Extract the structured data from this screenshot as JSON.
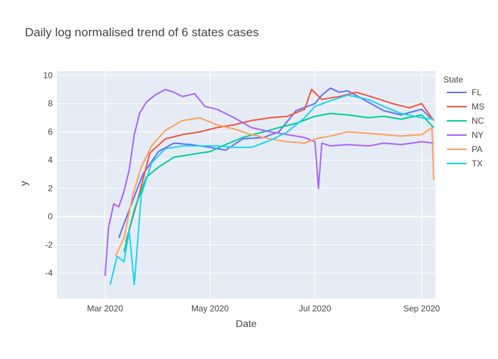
{
  "chart_data": {
    "type": "line",
    "title": "Daily log normalised trend of 6 states cases",
    "xlabel": "Date",
    "ylabel": "y",
    "legend_title": "State",
    "legend_position": "right",
    "grid": true,
    "x_tick_labels": [
      "Mar 2020",
      "May 2020",
      "Jul 2020",
      "Sep 2020"
    ],
    "x_tick_dates": [
      "2020-03-01",
      "2020-05-01",
      "2020-07-01",
      "2020-09-01"
    ],
    "xlim": [
      "2020-02-02",
      "2020-09-09"
    ],
    "y_ticks": [
      -4,
      -2,
      0,
      2,
      4,
      6,
      8,
      10
    ],
    "ylim": [
      -5.8,
      10.3
    ],
    "series": [
      {
        "name": "FL",
        "color": "#636efa",
        "x": [
          "2020-03-09",
          "2020-03-16",
          "2020-03-23",
          "2020-04-01",
          "2020-04-10",
          "2020-04-20",
          "2020-05-01",
          "2020-05-10",
          "2020-05-20",
          "2020-06-01",
          "2020-06-10",
          "2020-06-20",
          "2020-07-01",
          "2020-07-05",
          "2020-07-10",
          "2020-07-15",
          "2020-07-20",
          "2020-08-01",
          "2020-08-10",
          "2020-08-20",
          "2020-09-01",
          "2020-09-06"
        ],
        "y": [
          -1.5,
          0.8,
          3.0,
          4.6,
          5.2,
          5.1,
          4.9,
          4.7,
          5.5,
          5.6,
          6.0,
          7.5,
          8.0,
          8.6,
          9.1,
          8.8,
          8.9,
          8.1,
          7.5,
          7.2,
          7.6,
          7.0
        ]
      },
      {
        "name": "MS",
        "color": "#ef553b",
        "x": [
          "2020-03-13",
          "2020-03-20",
          "2020-03-27",
          "2020-04-05",
          "2020-04-15",
          "2020-04-25",
          "2020-05-05",
          "2020-05-15",
          "2020-05-25",
          "2020-06-05",
          "2020-06-15",
          "2020-06-25",
          "2020-06-29",
          "2020-07-05",
          "2020-07-15",
          "2020-07-25",
          "2020-08-05",
          "2020-08-15",
          "2020-08-25",
          "2020-09-01",
          "2020-09-08"
        ],
        "y": [
          -1.8,
          1.2,
          4.5,
          5.5,
          5.8,
          6.0,
          6.3,
          6.5,
          6.8,
          7.0,
          7.1,
          7.6,
          9.0,
          8.3,
          8.5,
          8.8,
          8.4,
          8.0,
          7.7,
          8.0,
          6.8
        ]
      },
      {
        "name": "NC",
        "color": "#00cc96",
        "x": [
          "2020-03-12",
          "2020-03-18",
          "2020-03-25",
          "2020-04-01",
          "2020-04-10",
          "2020-04-20",
          "2020-05-01",
          "2020-05-10",
          "2020-05-20",
          "2020-06-01",
          "2020-06-10",
          "2020-06-20",
          "2020-07-01",
          "2020-07-10",
          "2020-07-20",
          "2020-08-01",
          "2020-08-10",
          "2020-08-20",
          "2020-09-01",
          "2020-09-08"
        ],
        "y": [
          -2.5,
          0.5,
          2.8,
          3.5,
          4.2,
          4.4,
          4.6,
          5.1,
          5.6,
          6.0,
          6.3,
          6.6,
          7.1,
          7.3,
          7.2,
          7.0,
          7.1,
          6.9,
          7.2,
          6.3
        ]
      },
      {
        "name": "NY",
        "color": "#ab63fa",
        "x": [
          "2020-03-01",
          "2020-03-03",
          "2020-03-06",
          "2020-03-09",
          "2020-03-12",
          "2020-03-15",
          "2020-03-18",
          "2020-03-21",
          "2020-03-25",
          "2020-03-30",
          "2020-04-05",
          "2020-04-10",
          "2020-04-15",
          "2020-04-22",
          "2020-04-28",
          "2020-05-05",
          "2020-05-15",
          "2020-05-25",
          "2020-06-05",
          "2020-06-15",
          "2020-06-25",
          "2020-07-01",
          "2020-07-03",
          "2020-07-05",
          "2020-07-10",
          "2020-07-20",
          "2020-08-01",
          "2020-08-10",
          "2020-08-20",
          "2020-09-01",
          "2020-09-08"
        ],
        "y": [
          -4.2,
          -0.8,
          0.9,
          0.7,
          1.8,
          3.3,
          5.8,
          7.3,
          8.1,
          8.6,
          9.0,
          8.8,
          8.5,
          8.7,
          7.8,
          7.6,
          7.0,
          6.3,
          6.0,
          5.8,
          5.6,
          5.3,
          2.0,
          5.2,
          5.0,
          5.1,
          5.0,
          5.2,
          5.1,
          5.3,
          5.2
        ]
      },
      {
        "name": "PA",
        "color": "#ffa15a",
        "x": [
          "2020-03-07",
          "2020-03-12",
          "2020-03-17",
          "2020-03-22",
          "2020-03-28",
          "2020-04-05",
          "2020-04-15",
          "2020-04-25",
          "2020-05-05",
          "2020-05-15",
          "2020-05-25",
          "2020-06-05",
          "2020-06-15",
          "2020-06-25",
          "2020-07-01",
          "2020-07-10",
          "2020-07-20",
          "2020-08-01",
          "2020-08-10",
          "2020-08-20",
          "2020-09-01",
          "2020-09-07",
          "2020-09-08"
        ],
        "y": [
          -2.8,
          -1.5,
          1.5,
          3.5,
          5.0,
          6.1,
          6.8,
          7.0,
          6.5,
          6.2,
          5.8,
          5.5,
          5.3,
          5.2,
          5.5,
          5.7,
          6.0,
          5.9,
          5.8,
          5.7,
          5.8,
          6.3,
          2.6
        ]
      },
      {
        "name": "TX",
        "color": "#19d3f3",
        "x": [
          "2020-03-04",
          "2020-03-08",
          "2020-03-12",
          "2020-03-15",
          "2020-03-18",
          "2020-03-22",
          "2020-03-28",
          "2020-04-05",
          "2020-04-15",
          "2020-04-25",
          "2020-05-05",
          "2020-05-15",
          "2020-05-25",
          "2020-06-05",
          "2020-06-15",
          "2020-06-25",
          "2020-07-01",
          "2020-07-10",
          "2020-07-20",
          "2020-08-01",
          "2020-08-10",
          "2020-08-20",
          "2020-09-01",
          "2020-09-08"
        ],
        "y": [
          -4.8,
          -2.8,
          -3.2,
          -1.0,
          -4.8,
          1.5,
          3.8,
          4.8,
          5.0,
          5.0,
          5.0,
          4.9,
          4.9,
          5.4,
          6.0,
          7.0,
          7.8,
          8.2,
          8.6,
          8.3,
          7.8,
          7.3,
          7.0,
          6.9
        ]
      }
    ]
  }
}
